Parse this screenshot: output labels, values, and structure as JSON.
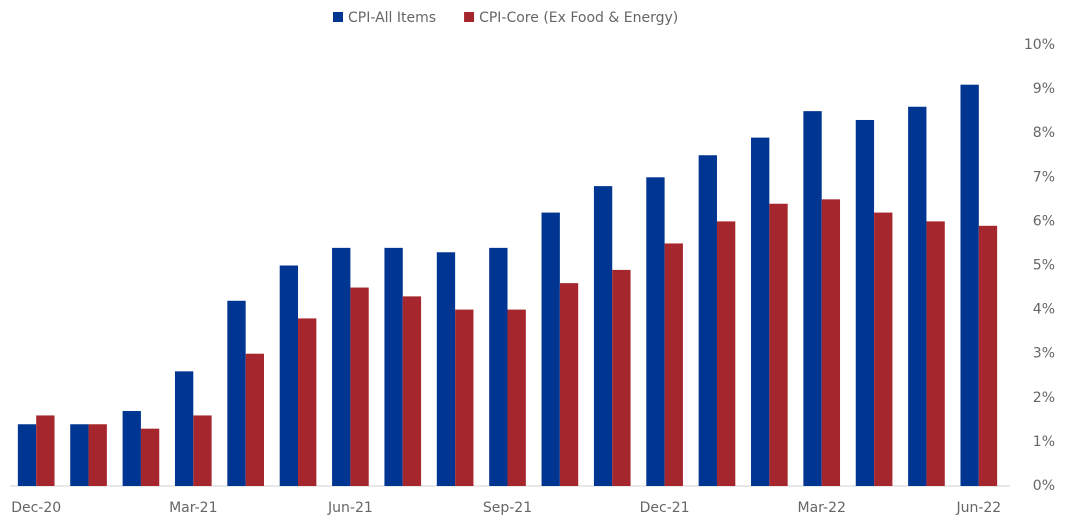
{
  "chart_data": {
    "type": "bar",
    "categories": [
      "Dec-20",
      null,
      null,
      "Mar-21",
      null,
      null,
      "Jun-21",
      null,
      null,
      "Sep-21",
      null,
      null,
      "Dec-21",
      null,
      null,
      "Mar-22",
      null,
      null,
      "Jun-22"
    ],
    "series": [
      {
        "name": "CPI-All Items",
        "color": "#003591",
        "values": [
          1.4,
          1.4,
          1.7,
          2.6,
          4.2,
          5.0,
          5.4,
          5.4,
          5.3,
          5.4,
          6.2,
          6.8,
          7.0,
          7.5,
          7.9,
          8.5,
          8.3,
          8.6,
          9.1
        ]
      },
      {
        "name": "CPI-Core (Ex Food & Energy)",
        "color": "#a6262d",
        "values": [
          1.6,
          1.4,
          1.3,
          1.6,
          3.0,
          3.8,
          4.5,
          4.3,
          4.0,
          4.0,
          4.6,
          4.9,
          5.5,
          6.0,
          6.4,
          6.5,
          6.2,
          6.0,
          5.9
        ]
      }
    ],
    "ylim": [
      0,
      10
    ],
    "yticks": [
      {
        "value": 0,
        "label": "0%"
      },
      {
        "value": 1,
        "label": "1%"
      },
      {
        "value": 2,
        "label": "2%"
      },
      {
        "value": 3,
        "label": "3%"
      },
      {
        "value": 4,
        "label": "4%"
      },
      {
        "value": 5,
        "label": "5%"
      },
      {
        "value": 6,
        "label": "6%"
      },
      {
        "value": 7,
        "label": "7%"
      },
      {
        "value": 8,
        "label": "8%"
      },
      {
        "value": 9,
        "label": "9%"
      },
      {
        "value": 10,
        "label": "10%"
      }
    ],
    "grid": false,
    "legend": "top"
  }
}
